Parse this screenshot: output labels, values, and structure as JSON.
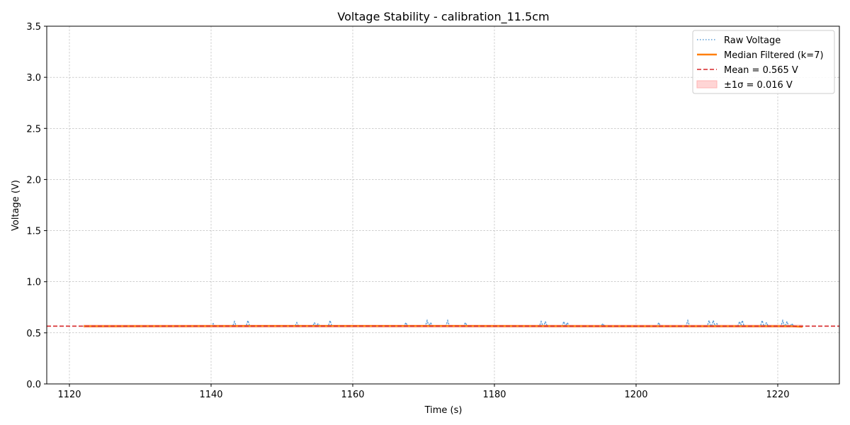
{
  "chart_data": {
    "type": "line",
    "title": "Voltage Stability - calibration_11.5cm",
    "xlabel": "Time (s)",
    "ylabel": "Voltage (V)",
    "xlim": [
      1116.8,
      1228.7
    ],
    "ylim": [
      0,
      3.5
    ],
    "xticks": [
      1120,
      1140,
      1160,
      1180,
      1200,
      1220
    ],
    "yticks": [
      0.0,
      0.5,
      1.0,
      1.5,
      2.0,
      2.5,
      3.0,
      3.5
    ],
    "grid": true,
    "legend_position": "top-right",
    "x_start": 1122,
    "x_end": 1223.5,
    "mean": 0.565,
    "std": 0.016,
    "raw_base": 0.565,
    "raw_spikes": [
      {
        "x": 1140.3,
        "y": 0.59
      },
      {
        "x": 1143.3,
        "y": 0.61
      },
      {
        "x": 1145.2,
        "y": 0.62
      },
      {
        "x": 1152.1,
        "y": 0.6
      },
      {
        "x": 1154.6,
        "y": 0.6
      },
      {
        "x": 1155.1,
        "y": 0.59
      },
      {
        "x": 1156.8,
        "y": 0.62
      },
      {
        "x": 1167.5,
        "y": 0.6
      },
      {
        "x": 1170.5,
        "y": 0.62
      },
      {
        "x": 1171.0,
        "y": 0.6
      },
      {
        "x": 1173.4,
        "y": 0.62
      },
      {
        "x": 1175.9,
        "y": 0.6
      },
      {
        "x": 1186.6,
        "y": 0.61
      },
      {
        "x": 1187.2,
        "y": 0.61
      },
      {
        "x": 1189.8,
        "y": 0.61
      },
      {
        "x": 1190.3,
        "y": 0.6
      },
      {
        "x": 1195.3,
        "y": 0.59
      },
      {
        "x": 1203.2,
        "y": 0.6
      },
      {
        "x": 1207.3,
        "y": 0.62
      },
      {
        "x": 1210.3,
        "y": 0.62
      },
      {
        "x": 1210.9,
        "y": 0.62
      },
      {
        "x": 1211.4,
        "y": 0.59
      },
      {
        "x": 1214.6,
        "y": 0.61
      },
      {
        "x": 1215.0,
        "y": 0.62
      },
      {
        "x": 1217.8,
        "y": 0.62
      },
      {
        "x": 1218.4,
        "y": 0.6
      },
      {
        "x": 1220.7,
        "y": 0.62
      },
      {
        "x": 1221.3,
        "y": 0.61
      },
      {
        "x": 1222.0,
        "y": 0.59
      }
    ],
    "filtered": {
      "x": [
        1122,
        1160,
        1200,
        1222,
        1223.5
      ],
      "y": [
        0.565,
        0.567,
        0.565,
        0.565,
        0.56
      ]
    },
    "series": [
      {
        "name": "Raw Voltage",
        "color": "#5b9bd5",
        "style": "dotted"
      },
      {
        "name": "Median Filtered (k=7)",
        "color": "#ff7f0e",
        "style": "solid"
      },
      {
        "name": "Mean = 0.565 V",
        "color": "#d62728",
        "style": "dashed"
      },
      {
        "name": "±1σ = 0.016 V",
        "color": "#ffb3b3",
        "style": "band"
      }
    ]
  }
}
